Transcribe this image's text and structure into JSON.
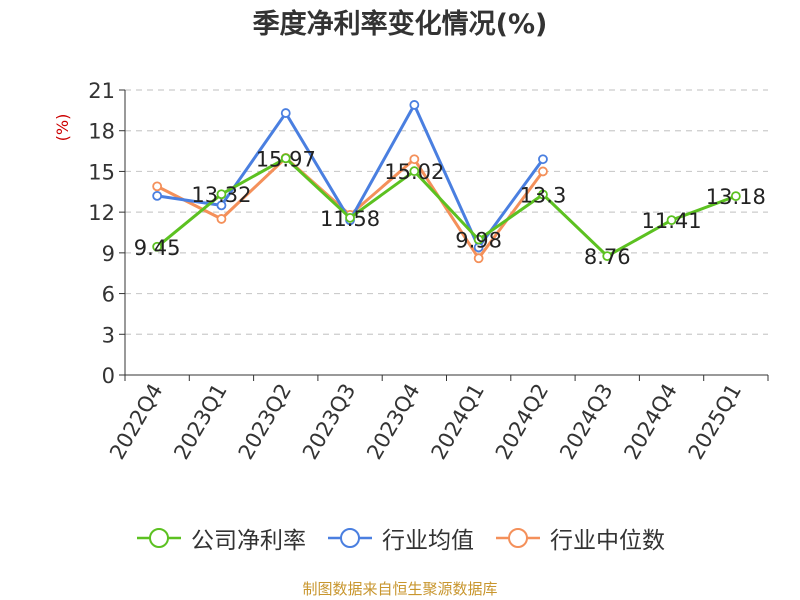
{
  "chart_data": {
    "type": "line",
    "title": "季度净利率变化情况(%)",
    "ylabel": "(%)",
    "xlabel": "",
    "categories": [
      "2022Q4",
      "2023Q1",
      "2023Q2",
      "2023Q3",
      "2023Q4",
      "2024Q1",
      "2024Q2",
      "2024Q3",
      "2024Q4",
      "2025Q1"
    ],
    "ylim": [
      0,
      21
    ],
    "yticks": [
      0,
      3,
      6,
      9,
      12,
      15,
      18,
      21
    ],
    "grid": "horizontal dashed",
    "legend_position": "bottom",
    "series": [
      {
        "name": "公司净利率",
        "color": "#5cc121",
        "values": [
          9.45,
          13.32,
          15.97,
          11.58,
          15.02,
          9.98,
          13.3,
          8.76,
          11.41,
          13.18
        ],
        "labels": [
          "9.45",
          "13.32",
          "15.97",
          "11.58",
          "15.02",
          "9.98",
          "13.3",
          "8.76",
          "11.41",
          "13.18"
        ]
      },
      {
        "name": "行业均值",
        "color": "#4a7fe0",
        "values": [
          13.2,
          12.5,
          19.3,
          11.4,
          19.9,
          9.4,
          15.9,
          null,
          null,
          null
        ]
      },
      {
        "name": "行业中位数",
        "color": "#f4905a",
        "values": [
          13.9,
          11.5,
          16.0,
          11.8,
          15.9,
          8.6,
          15.0,
          null,
          null,
          null
        ]
      }
    ]
  },
  "source_text": "制图数据来自恒生聚源数据库",
  "colors": {
    "axis": "#333333",
    "grid": "#cccccc",
    "ylabel": "#cc0000",
    "source": "#c8962e",
    "marker_fill": "#ffffff"
  }
}
